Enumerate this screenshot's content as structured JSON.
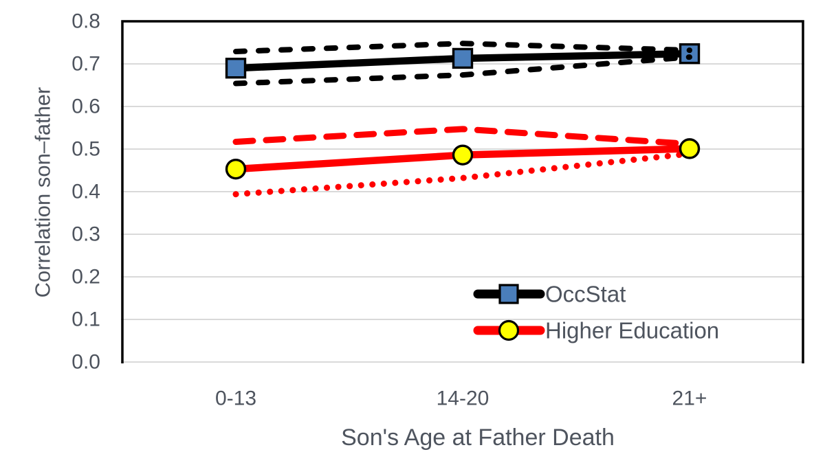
{
  "chart_data": {
    "type": "line",
    "title": "",
    "xlabel": "Son's Age at Father Death",
    "ylabel": "Correlation son–father",
    "categories": [
      "0-13",
      "14-20",
      "21+"
    ],
    "y_ticks": [
      "0.0",
      "0.1",
      "0.2",
      "0.3",
      "0.4",
      "0.5",
      "0.6",
      "0.7",
      "0.8"
    ],
    "ylim": [
      0.0,
      0.8
    ],
    "grid": "horizontal",
    "legend_position": "inside-bottom-right",
    "series": [
      {
        "name": "OccStat",
        "line_color": "#000000",
        "marker": "square",
        "marker_fill": "#4a7ebb",
        "marker_stroke": "#000000",
        "values": [
          0.69,
          0.713,
          0.724
        ],
        "ci_upper": [
          0.729,
          0.748,
          0.732
        ],
        "ci_lower": [
          0.654,
          0.674,
          0.716
        ],
        "ci_upper_style": "dashed-short",
        "ci_lower_style": "dashed-short",
        "ci_color": "#000000",
        "bands_over_markers": true
      },
      {
        "name": "Higher Education",
        "line_color": "#ff0000",
        "marker": "circle",
        "marker_fill": "#ffff00",
        "marker_stroke": "#000000",
        "values": [
          0.453,
          0.486,
          0.501
        ],
        "ci_upper": [
          0.517,
          0.547,
          0.512
        ],
        "ci_lower": [
          0.394,
          0.432,
          0.489
        ],
        "ci_upper_style": "dashed-long",
        "ci_lower_style": "dotted",
        "ci_color": "#ff0000",
        "bands_over_markers": false
      }
    ],
    "colors": {
      "grid": "#d9d9d9",
      "axis_border": "#000000",
      "text": "#4e545e",
      "background": "#ffffff"
    }
  }
}
